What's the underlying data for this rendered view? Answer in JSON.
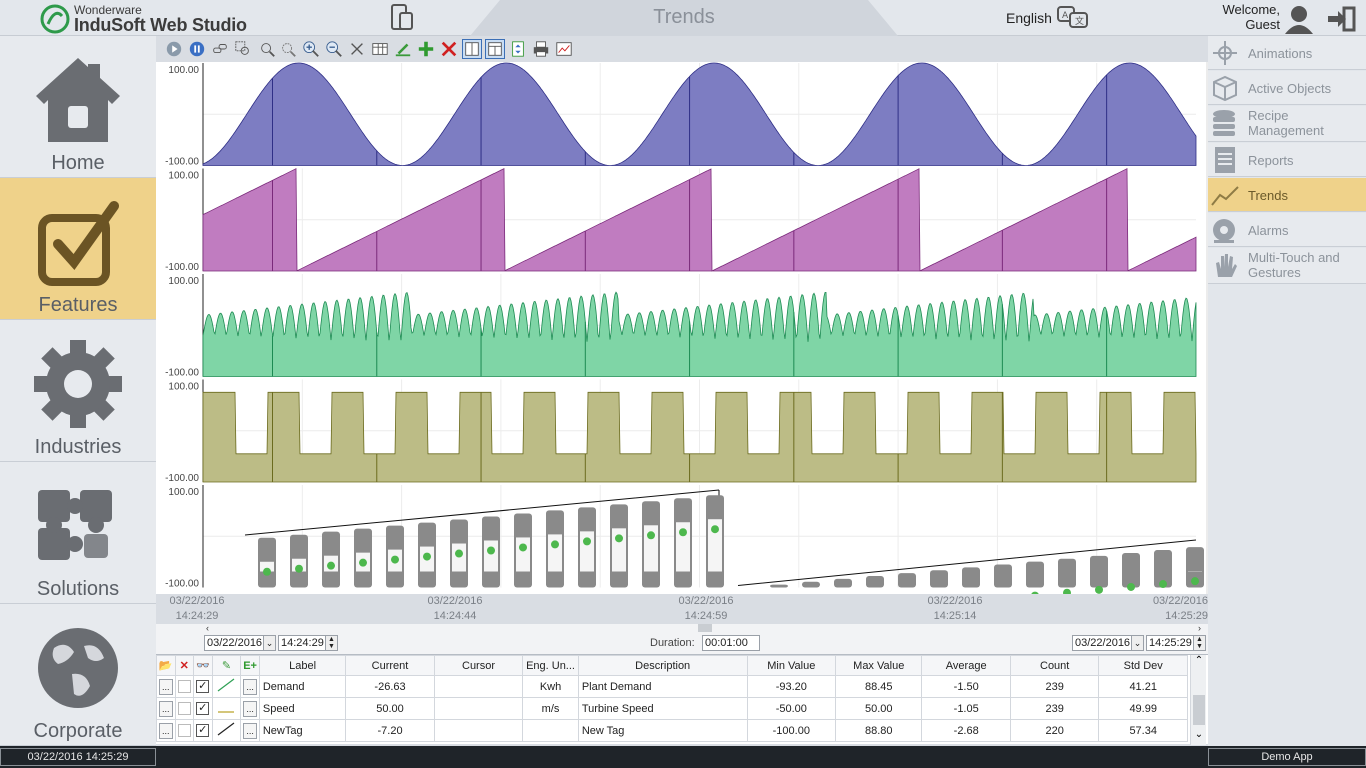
{
  "header": {
    "brand_small": "Wonderware",
    "brand_main": "InduSoft Web Studio",
    "page_title": "Trends",
    "language": "English",
    "welcome": "Welcome,",
    "user": "Guest"
  },
  "left_nav": [
    {
      "label": "Home",
      "icon": "home-icon",
      "active": false
    },
    {
      "label": "Features",
      "icon": "checkbox-icon",
      "active": true
    },
    {
      "label": "Industries",
      "icon": "gear-icon",
      "active": false
    },
    {
      "label": "Solutions",
      "icon": "puzzle-icon",
      "active": false
    },
    {
      "label": "Corporate",
      "icon": "globe-icon",
      "active": false
    }
  ],
  "right_nav": [
    {
      "label": "Animations",
      "active": false
    },
    {
      "label": "Active Objects",
      "active": false
    },
    {
      "label": "Recipe Management",
      "active": false
    },
    {
      "label": "Reports",
      "active": false
    },
    {
      "label": "Trends",
      "active": true
    },
    {
      "label": "Alarms",
      "active": false
    },
    {
      "label": "Multi-Touch and Gestures",
      "active": false
    }
  ],
  "chart_data": {
    "type": "area",
    "panels": [
      {
        "name": "sine",
        "ymax": "100.00",
        "ymin": "-100.00",
        "color": "#7d7dc2",
        "stroke": "#2f2f86"
      },
      {
        "name": "sawtooth",
        "ymax": "100.00",
        "ymin": "-100.00",
        "color": "#c07cc0",
        "stroke": "#7a2a7a"
      },
      {
        "name": "random",
        "ymax": "100.00",
        "ymin": "-100.00",
        "color": "#7fd5a6",
        "stroke": "#1c8a52"
      },
      {
        "name": "square",
        "ymax": "100.00",
        "ymin": "-100.00",
        "color": "#bcbc86",
        "stroke": "#6b6b1e"
      },
      {
        "name": "bottles",
        "ymax": "100.00",
        "ymin": "-100.00",
        "color": "#8a8a8a",
        "stroke": "#000000"
      }
    ],
    "x_ticks": [
      {
        "date": "03/22/2016",
        "time": "14:24:29"
      },
      {
        "date": "03/22/2016",
        "time": "14:24:44"
      },
      {
        "date": "03/22/2016",
        "time": "14:24:59"
      },
      {
        "date": "03/22/2016",
        "time": "14:25:14"
      },
      {
        "date": "03/22/2016",
        "time": "14:25:29"
      }
    ]
  },
  "range": {
    "start_date": "03/22/2016",
    "start_time": "14:24:29",
    "duration_label": "Duration:",
    "duration": "00:01:00",
    "end_date": "03/22/2016",
    "end_time": "14:25:29"
  },
  "legend": {
    "columns": [
      "Label",
      "Current",
      "Cursor",
      "Eng. Un...",
      "Description",
      "Min Value",
      "Max Value",
      "Average",
      "Count",
      "Std Dev"
    ],
    "rows": [
      {
        "label": "Demand",
        "current": "-26.63",
        "cursor": "",
        "eng": "Kwh",
        "description": "Plant Demand",
        "min": "-93.20",
        "max": "88.45",
        "avg": "-1.50",
        "count": "239",
        "std": "41.21",
        "pen": "#2ea055"
      },
      {
        "label": "Speed",
        "current": "50.00",
        "cursor": "",
        "eng": "m/s",
        "description": "Turbine Speed",
        "min": "-50.00",
        "max": "50.00",
        "avg": "-1.05",
        "count": "239",
        "std": "49.99",
        "pen": "#b8a020"
      },
      {
        "label": "NewTag",
        "current": "-7.20",
        "cursor": "",
        "eng": "",
        "description": "New Tag",
        "min": "-100.00",
        "max": "88.80",
        "avg": "-2.68",
        "count": "220",
        "std": "57.34",
        "pen": "#222222"
      }
    ]
  },
  "status": {
    "datetime": "03/22/2016 14:25:29",
    "app": "Demo App"
  }
}
